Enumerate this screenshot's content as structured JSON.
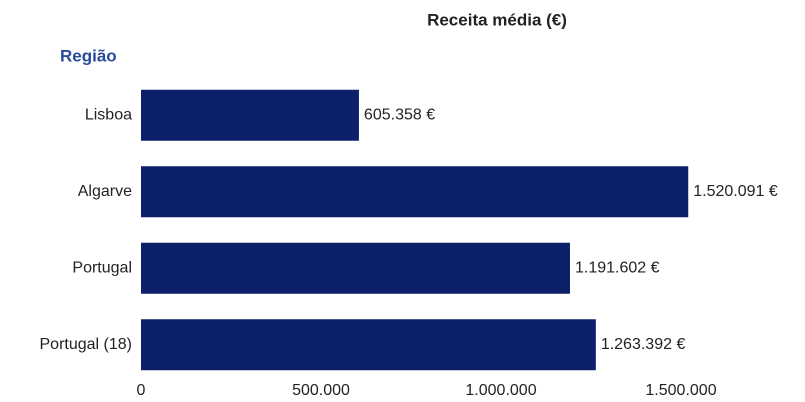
{
  "chart_data": {
    "type": "bar",
    "orientation": "horizontal",
    "title": "Receita média (€)",
    "y_label": "Região",
    "categories": [
      "Lisboa",
      "Algarve",
      "Portugal",
      "Portugal (18)"
    ],
    "values": [
      605358,
      1520091,
      1191602,
      1263392
    ],
    "value_labels": [
      "605.358 €",
      "1.520.091 €",
      "1.191.602 €",
      "1.263.392 €"
    ],
    "color": "#0b2068",
    "xlim": [
      0,
      1600000
    ],
    "xticks": [
      0,
      {
        "value": 500000,
        "label": "500.000"
      },
      {
        "value": 1000000,
        "label": "1.000.000"
      },
      {
        "value": 1500000,
        "label": "1.500.000"
      }
    ],
    "grid": false
  }
}
